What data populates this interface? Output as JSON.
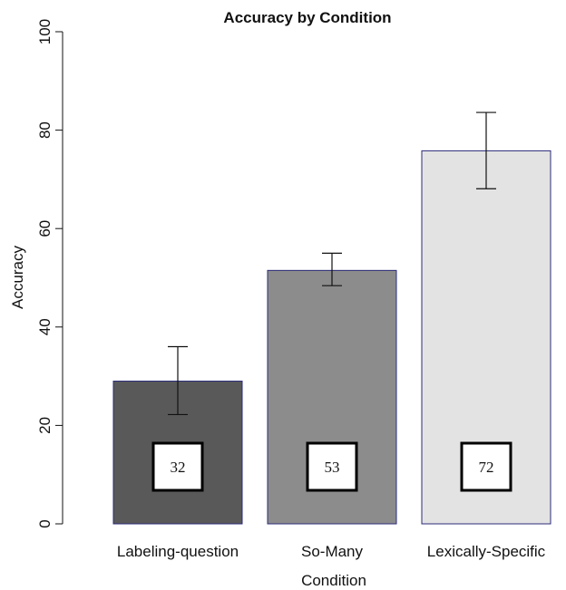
{
  "chart_data": {
    "type": "bar",
    "title": "Accuracy by Condition",
    "xlabel": "Condition",
    "ylabel": "Accuracy",
    "ylim": [
      0,
      100
    ],
    "yticks": [
      0,
      20,
      40,
      60,
      80,
      100
    ],
    "grid": false,
    "legend": "none",
    "categories": [
      "Labeling-question",
      "So-Many",
      "Lexically-Specific"
    ],
    "values": [
      29,
      51.5,
      75.8
    ],
    "error_low": [
      22.2,
      48.4,
      68.1
    ],
    "error_high": [
      36,
      55,
      83.6
    ],
    "box_labels": [
      "32",
      "53",
      "72"
    ],
    "colors": [
      "#595959",
      "#8c8c8c",
      "#e3e3e3"
    ],
    "bar_border_color": "#2b2b7a"
  }
}
